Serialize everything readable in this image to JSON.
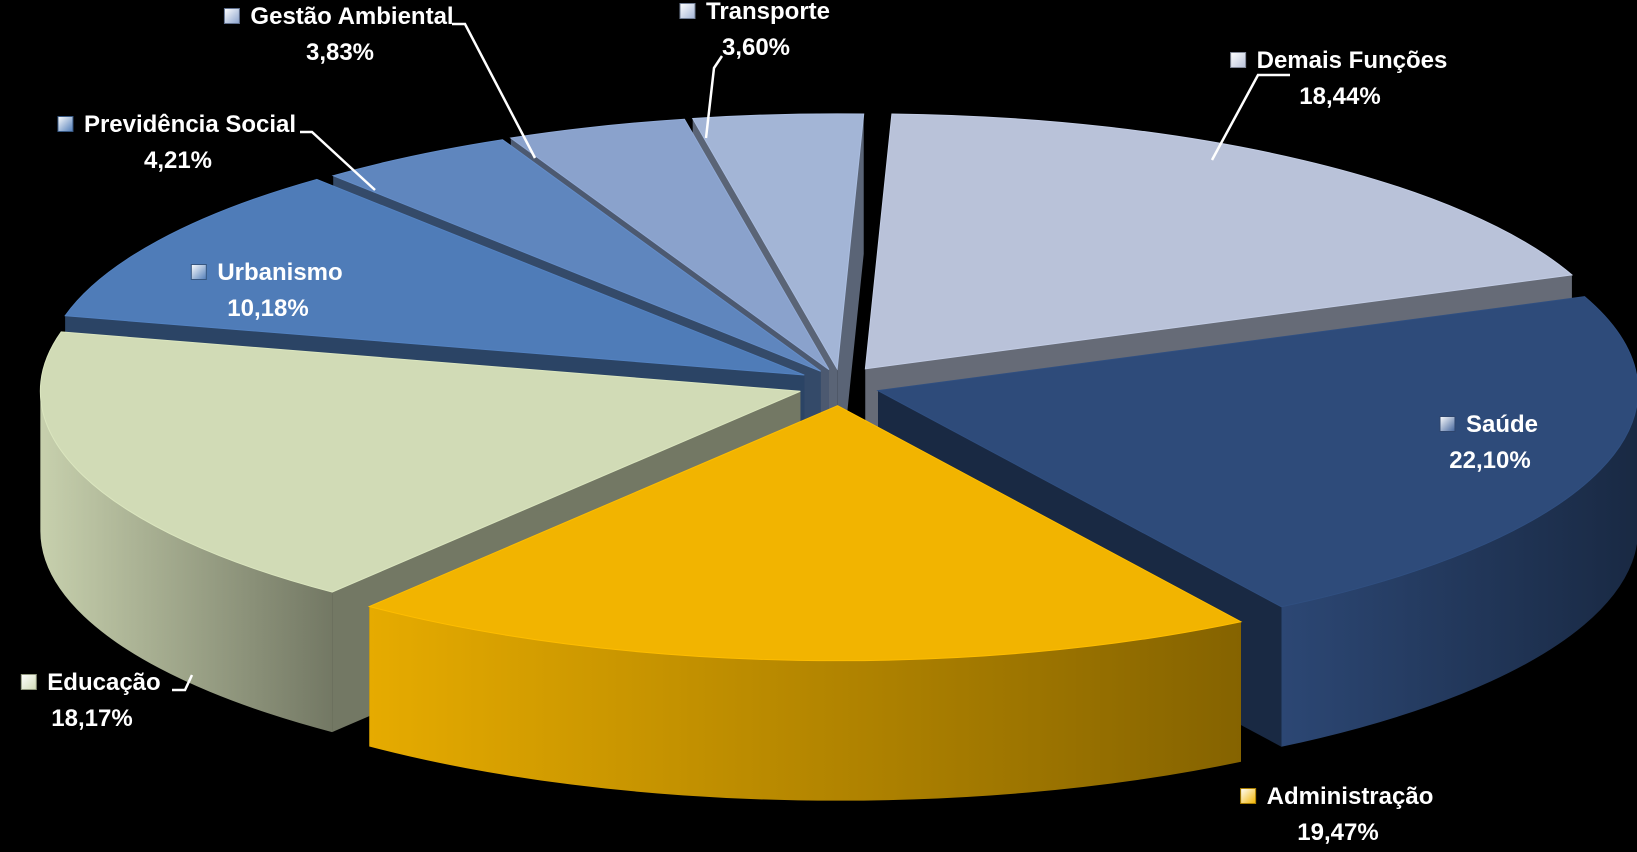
{
  "chart_data": {
    "type": "pie",
    "style": "3d-exploded",
    "legend": "none",
    "slices": [
      {
        "name": "Demais Funções",
        "pct_label": "18,44%",
        "value": 18.44,
        "color": "#b9c2d9",
        "marker": "#b9c2d9"
      },
      {
        "name": "Saúde",
        "pct_label": "22,10%",
        "value": 22.1,
        "color": "#2e4b7a",
        "marker": "#41639b"
      },
      {
        "name": "Administração",
        "pct_label": "19,47%",
        "value": 19.47,
        "color": "#f2b400",
        "marker": "#f2b400"
      },
      {
        "name": "Educação",
        "pct_label": "18,17%",
        "value": 18.17,
        "color": "#d1dbb6",
        "marker": "#d1dbb6"
      },
      {
        "name": "Urbanismo",
        "pct_label": "10,18%",
        "value": 10.18,
        "color": "#4f7cb8",
        "marker": "#4f7cb8"
      },
      {
        "name": "Previdência Social",
        "pct_label": "4,21%",
        "value": 4.21,
        "color": "#5f86be",
        "marker": "#4f7cb8"
      },
      {
        "name": "Gestão Ambiental",
        "pct_label": "3,83%",
        "value": 3.83,
        "color": "#8aa2cc",
        "marker": "#8aa2cc"
      },
      {
        "name": "Transporte",
        "pct_label": "3,60%",
        "value": 3.6,
        "color": "#a3b5d6",
        "marker": "#a3b5d6"
      }
    ]
  }
}
